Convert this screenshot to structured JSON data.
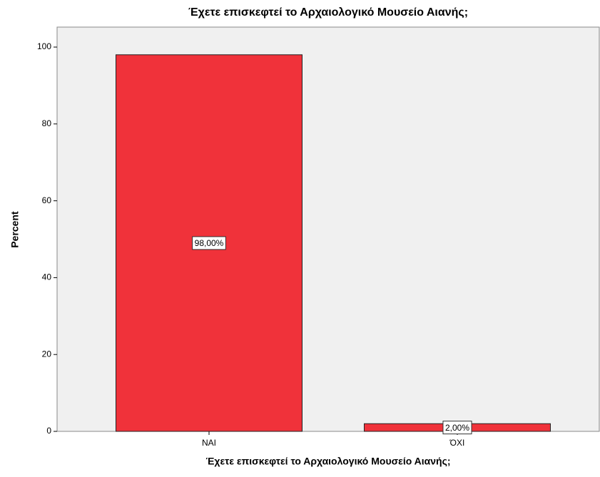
{
  "chart_data": {
    "type": "bar",
    "title": "Έχετε επισκεφτεί το Αρχαιολογικό Μουσείο Αιανής;",
    "x_label": "Έχετε επισκεφτεί το Αρχαιολογικό Μουσείο Αιανής;",
    "y_label": "Percent",
    "categories": [
      "ΝΑΙ",
      "ΌΧΙ"
    ],
    "values": [
      98,
      2
    ],
    "value_labels": [
      "98,00%",
      "2,00%"
    ],
    "color": "#f0323a",
    "ylim": [
      0,
      105.2
    ],
    "yticks": [
      0,
      20,
      40,
      60,
      80,
      100
    ],
    "grid": false
  }
}
